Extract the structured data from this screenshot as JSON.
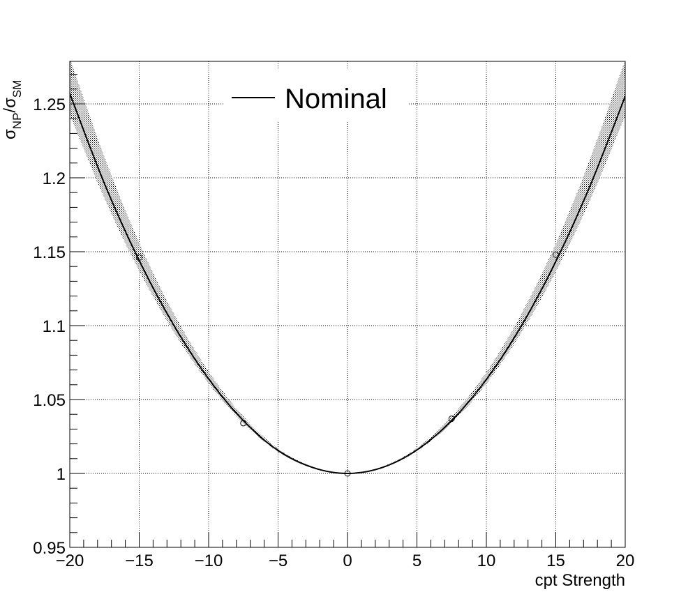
{
  "chart_data": {
    "type": "line",
    "title": "",
    "xlabel": "cpt Strength",
    "ylabel": {
      "main": "σ",
      "sub": "NP",
      "slash": "/",
      "main2": "σ",
      "sub2": "SM"
    },
    "xlim": [
      -20,
      20
    ],
    "ylim": [
      0.95,
      1.28
    ],
    "x_ticks": [
      -20,
      -15,
      -10,
      -5,
      0,
      5,
      10,
      15,
      20
    ],
    "x_tick_labels": [
      "−20",
      "−15",
      "−10",
      "−5",
      "0",
      "5",
      "10",
      "15",
      "20"
    ],
    "y_ticks": [
      0.95,
      1.0,
      1.05,
      1.1,
      1.15,
      1.2,
      1.25
    ],
    "y_tick_labels": [
      "0.95",
      "1",
      "1.05",
      "1.1",
      "1.15",
      "1.2",
      "1.25"
    ],
    "grid": true,
    "legend": {
      "placement": "top-left",
      "entries": [
        {
          "label": "Nominal",
          "style": "line"
        }
      ]
    },
    "series": [
      {
        "name": "Nominal",
        "kind": "curve",
        "x": [
          -20,
          -17.5,
          -15,
          -12.5,
          -10,
          -7.5,
          -5,
          -2.5,
          0,
          2.5,
          5,
          7.5,
          10,
          12.5,
          15,
          17.5,
          20
        ],
        "y": [
          1.257,
          1.196,
          1.144,
          1.1001,
          1.064,
          1.0357,
          1.0155,
          1.004,
          1.0,
          1.004,
          1.0159,
          1.0358,
          1.0636,
          1.0995,
          1.1434,
          1.1953,
          1.2552
        ]
      },
      {
        "name": "",
        "kind": "points",
        "x": [
          -15,
          -7.5,
          0,
          7.5,
          15
        ],
        "y": [
          1.146,
          1.034,
          1.0,
          1.037,
          1.148
        ]
      }
    ],
    "band": {
      "kind": "uncertainty",
      "x": [
        -20,
        -17.5,
        -15,
        -12.5,
        -10,
        -7.5,
        -5,
        -2.5,
        0,
        2.5,
        5,
        7.5,
        10,
        12.5,
        15,
        17.5,
        20
      ],
      "lower": [
        1.243,
        1.186,
        1.137,
        1.0955,
        1.061,
        1.034,
        1.0147,
        1.0037,
        1.0,
        1.0037,
        1.0151,
        1.0342,
        1.0607,
        1.095,
        1.1365,
        1.1855,
        1.242
      ],
      "upper": [
        1.281,
        1.214,
        1.156,
        1.108,
        1.069,
        1.0385,
        1.0168,
        1.0045,
        1.0,
        1.0045,
        1.0172,
        1.0386,
        1.0685,
        1.1075,
        1.1555,
        1.2135,
        1.28
      ]
    },
    "colors": {
      "curve": "#000000",
      "band": "#000000",
      "grid": "#000000",
      "background": "#ffffff"
    }
  }
}
